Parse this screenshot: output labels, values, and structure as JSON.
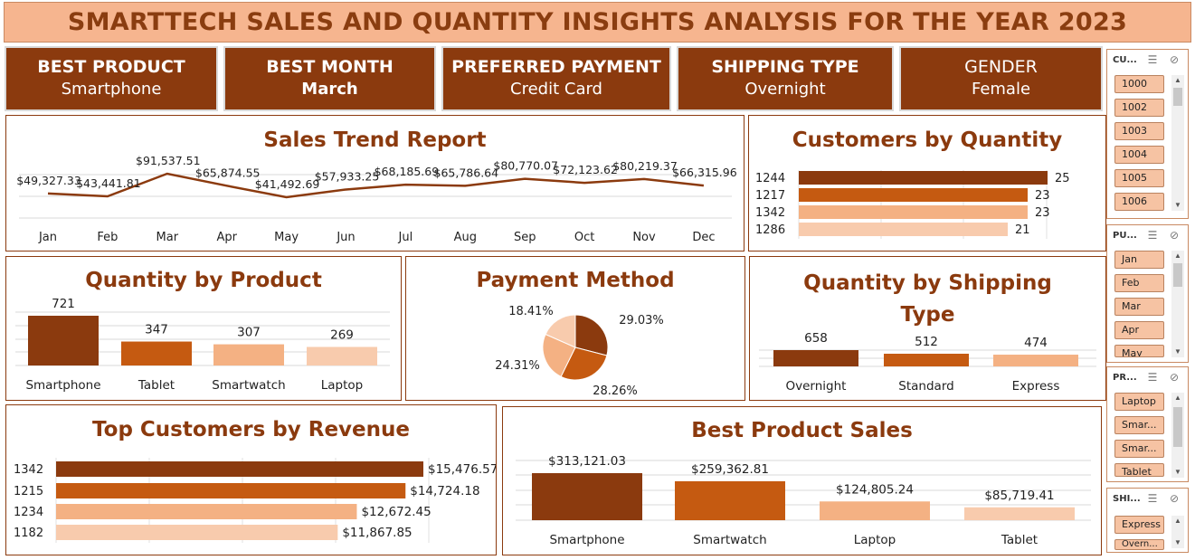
{
  "title": "SMARTTECH SALES AND QUANTITY INSIGHTS ANALYSIS FOR THE YEAR 2023",
  "colors": {
    "dark": "#8b3a0e",
    "mid": "#c55a11",
    "light": "#f4b183",
    "lighter": "#f8cbad",
    "title_bg": "#f6b58f"
  },
  "kpis": [
    {
      "label": "BEST PRODUCT",
      "value": "Smartphone"
    },
    {
      "label": "BEST MONTH",
      "value": "March"
    },
    {
      "label": "PREFERRED PAYMENT",
      "value": "Credit Card"
    },
    {
      "label": "SHIPPING TYPE",
      "value": "Overnight"
    },
    {
      "label": "GENDER",
      "value": "Female"
    }
  ],
  "chart_data": [
    {
      "id": "sales-trend",
      "type": "line",
      "title": "Sales Trend Report",
      "categories": [
        "Jan",
        "Feb",
        "Mar",
        "Apr",
        "May",
        "Jun",
        "Jul",
        "Aug",
        "Sep",
        "Oct",
        "Nov",
        "Dec"
      ],
      "values": [
        49327.33,
        43441.81,
        91537.51,
        65874.55,
        41492.69,
        57933.25,
        68185.69,
        65786.64,
        80770.07,
        72123.62,
        80219.37,
        66315.96
      ],
      "labels": [
        "$49,327.33",
        "$43,441.81",
        "$91,537.51",
        "$65,874.55",
        "$41,492.69",
        "$57,933.25",
        "$68,185.69",
        "$65,786.64",
        "$80,770.07",
        "$72,123.62",
        "$80,219.37",
        "$66,315.96"
      ],
      "grid": true
    },
    {
      "id": "customers-by-quantity",
      "type": "bar",
      "orientation": "horizontal",
      "title": "Customers by Quantity",
      "categories": [
        "1244",
        "1217",
        "1342",
        "1286"
      ],
      "values": [
        25,
        23,
        23,
        21
      ]
    },
    {
      "id": "quantity-by-product",
      "type": "bar",
      "title": "Quantity by Product",
      "categories": [
        "Smartphone",
        "Tablet",
        "Smartwatch",
        "Laptop"
      ],
      "values": [
        721,
        347,
        307,
        269
      ]
    },
    {
      "id": "payment-method",
      "type": "pie",
      "title": "Payment Method",
      "values": [
        29.03,
        28.26,
        24.31,
        18.41
      ],
      "labels": [
        "29.03%",
        "28.26%",
        "24.31%",
        "18.41%"
      ]
    },
    {
      "id": "quantity-by-shipping",
      "type": "bar",
      "title": "Quantity by Shipping Type",
      "title_lines": [
        "Quantity by Shipping",
        "Type"
      ],
      "categories": [
        "Overnight",
        "Standard",
        "Express"
      ],
      "values": [
        658,
        512,
        474
      ]
    },
    {
      "id": "top-customers-revenue",
      "type": "bar",
      "orientation": "horizontal",
      "title": "Top Customers by Revenue",
      "categories": [
        "1342",
        "1215",
        "1234",
        "1182"
      ],
      "values": [
        15476.57,
        14724.18,
        12672.45,
        11867.85
      ],
      "labels": [
        "$15,476.57",
        "$14,724.18",
        "$12,672.45",
        "$11,867.85"
      ]
    },
    {
      "id": "best-product-sales",
      "type": "bar",
      "title": "Best Product Sales",
      "categories": [
        "Smartphone",
        "Smartwatch",
        "Laptop",
        "Tablet"
      ],
      "values": [
        313121.03,
        259362.81,
        124805.24,
        85719.41
      ],
      "labels": [
        "$313,121.03",
        "$259,362.81",
        "$124,805.24",
        "$85,719.41"
      ]
    }
  ],
  "slicers": [
    {
      "name": "customer-id",
      "header": "CU...",
      "items": [
        "1000",
        "1002",
        "1003",
        "1004",
        "1005",
        "1006"
      ]
    },
    {
      "name": "purchase-month",
      "header": "PU...",
      "items": [
        "Jan",
        "Feb",
        "Mar",
        "Apr",
        "May"
      ]
    },
    {
      "name": "product",
      "header": "PR...",
      "items": [
        "Laptop",
        "Smar...",
        "Smar...",
        "Tablet"
      ]
    },
    {
      "name": "shipping",
      "header": "SHI...",
      "items": [
        "Express",
        "Overn..."
      ]
    }
  ],
  "icons": {
    "multi_select": "multi-select-icon",
    "clear_filter": "clear-filter-icon"
  }
}
